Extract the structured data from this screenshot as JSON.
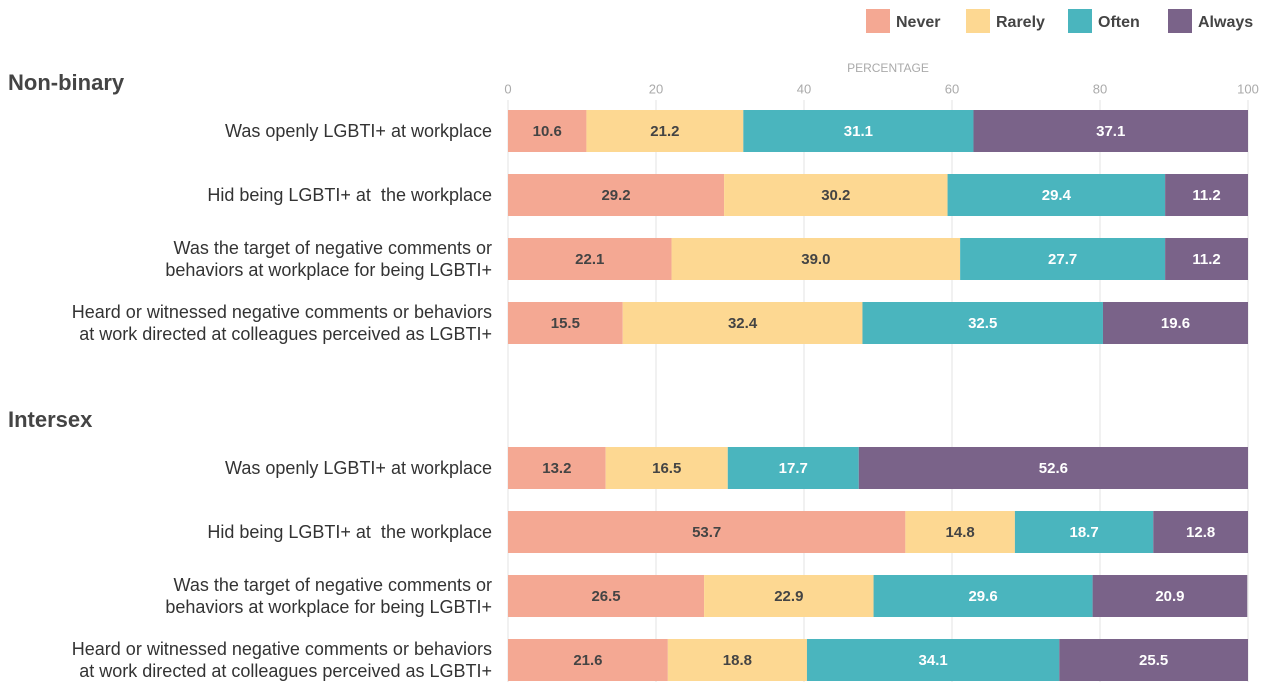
{
  "chart_data": {
    "type": "stacked-bar-horizontal",
    "xlabel": "PERCENTAGE",
    "xlim": [
      0,
      100
    ],
    "xticks": [
      0,
      20,
      40,
      60,
      80,
      100
    ],
    "grid": true,
    "legend": "top-right",
    "groups": [
      {
        "name": "Non-binary",
        "categories": [
          "Was openly LGBTI+ at workplace",
          "Hid being LGBTI+ at  the workplace",
          "Was the target of negative comments or\nbehaviors at workplace for being LGBTI+",
          "Heard or witnessed negative comments or behaviors\nat work directed at colleagues perceived as LGBTI+"
        ]
      },
      {
        "name": "Intersex",
        "categories": [
          "Was openly LGBTI+ at workplace",
          "Hid being LGBTI+ at  the workplace",
          "Was the target of negative comments or\nbehaviors at workplace for being LGBTI+",
          "Heard or witnessed negative comments or behaviors\nat work directed at colleagues perceived as LGBTI+"
        ]
      }
    ],
    "series": [
      {
        "name": "Never",
        "color": "#f4a893",
        "values": [
          [
            10.6,
            29.2,
            22.1,
            15.5
          ],
          [
            13.2,
            53.7,
            26.5,
            21.6
          ]
        ],
        "value_labels": [
          [
            "10.6",
            "29.2",
            "22.1",
            "15.5"
          ],
          [
            "13.2",
            "53.7",
            "26.5",
            "21.6"
          ]
        ]
      },
      {
        "name": "Rarely",
        "color": "#fdd892",
        "values": [
          [
            21.2,
            30.2,
            39.0,
            32.4
          ],
          [
            16.5,
            14.8,
            22.9,
            18.8
          ]
        ],
        "value_labels": [
          [
            "21.2",
            "30.2",
            "39.0",
            "32.4"
          ],
          [
            "16.5",
            "14.8",
            "22.9",
            "18.8"
          ]
        ]
      },
      {
        "name": "Often",
        "color": "#4ab5be",
        "values": [
          [
            31.1,
            29.4,
            27.7,
            32.5
          ],
          [
            17.7,
            18.7,
            29.6,
            34.1
          ]
        ],
        "value_labels": [
          [
            "31.1",
            "29.4",
            "27.7",
            "32.5"
          ],
          [
            "17.7",
            "18.7",
            "29.6",
            "34.1"
          ]
        ]
      },
      {
        "name": "Always",
        "color": "#7a6389",
        "values": [
          [
            37.1,
            11.2,
            11.2,
            19.6
          ],
          [
            52.6,
            12.8,
            20.9,
            25.5
          ]
        ],
        "value_labels": [
          [
            "37.1",
            "11.2",
            "11.2",
            "19.6"
          ],
          [
            "52.6",
            "12.8",
            "20.9",
            "25.5"
          ]
        ]
      }
    ]
  }
}
